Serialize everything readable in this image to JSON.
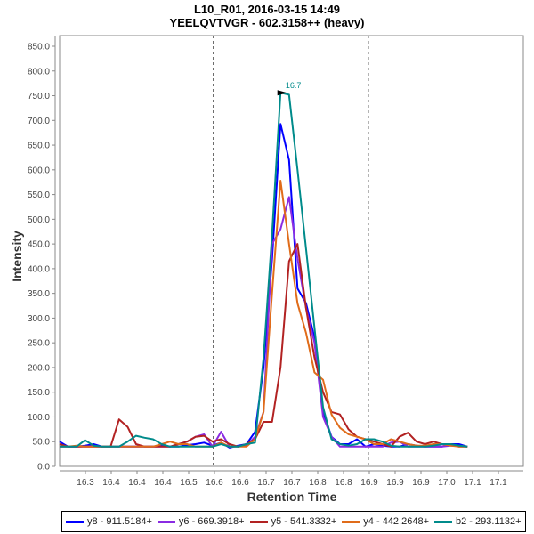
{
  "chart_data": {
    "type": "line",
    "title": "L10_R01, 2016-03-15 14:49",
    "subtitle": "YEELQVTVGR - 602.3158++ (heavy)",
    "xlabel": "Retention Time",
    "ylabel": "Intensity",
    "xlim": [
      16.25,
      17.148
    ],
    "ylim": [
      0,
      860
    ],
    "x_ticks": [
      16.3,
      16.35,
      16.4,
      16.45,
      16.5,
      16.55,
      16.6,
      16.65,
      16.7,
      16.75,
      16.8,
      16.85,
      16.9,
      16.95,
      17.0,
      17.05,
      17.1
    ],
    "x_tick_labels": [
      "16.3",
      "16.4",
      "16.4",
      "16.4",
      "16.5",
      "16.6",
      "16.6",
      "16.7",
      "16.7",
      "16.8",
      "16.8",
      "16.9",
      "16.9",
      "16.9",
      "17.0",
      "17.1",
      "17.1"
    ],
    "y_ticks": [
      0,
      50,
      100,
      150,
      200,
      250,
      300,
      350,
      400,
      450,
      500,
      550,
      600,
      650,
      700,
      750,
      800,
      850
    ],
    "y_tick_labels": [
      "0.0",
      "50.0",
      "100.0",
      "150.0",
      "200.0",
      "250.0",
      "300.0",
      "350.0",
      "400.0",
      "450.0",
      "500.0",
      "550.0",
      "600.0",
      "650.0",
      "700.0",
      "750.0",
      "800.0",
      "850.0"
    ],
    "grid": false,
    "integration_bounds": [
      16.548,
      16.848
    ],
    "peak_annotation": {
      "label": "16.7",
      "x": 16.696,
      "y": 756,
      "color": "#008b8b"
    },
    "x_start": 16.25,
    "x_step": 0.01646,
    "series": [
      {
        "name": "y8 - 911.5184+",
        "color": "#0000ff",
        "values": [
          50,
          40,
          40,
          42,
          45,
          40,
          40,
          40,
          40,
          40,
          40,
          40,
          42,
          40,
          40,
          43,
          45,
          48,
          42,
          48,
          38,
          42,
          45,
          70,
          200,
          420,
          693,
          620,
          360,
          330,
          260,
          110,
          60,
          45,
          45,
          55,
          40,
          45,
          42,
          40,
          40,
          45,
          42,
          40,
          40,
          40,
          45,
          45,
          40
        ]
      },
      {
        "name": "y6 - 669.3918+",
        "color": "#8a2be2",
        "values": [
          40,
          40,
          40,
          40,
          40,
          40,
          40,
          40,
          40,
          40,
          40,
          40,
          40,
          40,
          45,
          50,
          60,
          65,
          40,
          70,
          40,
          40,
          42,
          60,
          110,
          450,
          480,
          545,
          420,
          320,
          250,
          100,
          60,
          40,
          40,
          40,
          40,
          40,
          40,
          48,
          50,
          40,
          40,
          40,
          40,
          40,
          42,
          42,
          40
        ]
      },
      {
        "name": "y5 - 541.3332+",
        "color": "#b22222",
        "values": [
          45,
          40,
          40,
          40,
          40,
          40,
          40,
          95,
          80,
          45,
          40,
          40,
          40,
          40,
          45,
          50,
          60,
          62,
          50,
          55,
          45,
          40,
          45,
          55,
          90,
          90,
          200,
          415,
          450,
          320,
          220,
          150,
          110,
          105,
          75,
          60,
          55,
          50,
          45,
          40,
          60,
          68,
          50,
          45,
          50,
          45,
          45,
          40,
          40
        ]
      },
      {
        "name": "y4 - 442.2648+",
        "color": "#e06c1a",
        "values": [
          40,
          40,
          42,
          40,
          40,
          40,
          40,
          40,
          40,
          40,
          40,
          40,
          45,
          50,
          45,
          45,
          40,
          40,
          40,
          48,
          40,
          40,
          40,
          55,
          110,
          350,
          578,
          450,
          330,
          270,
          190,
          175,
          105,
          78,
          65,
          60,
          55,
          45,
          45,
          55,
          50,
          45,
          42,
          42,
          45,
          45,
          42,
          40,
          40
        ]
      },
      {
        "name": "b2 - 293.1132+",
        "color": "#008b8b",
        "values": [
          40,
          40,
          40,
          53,
          42,
          40,
          40,
          40,
          50,
          62,
          58,
          55,
          45,
          40,
          40,
          40,
          40,
          40,
          40,
          45,
          40,
          40,
          45,
          48,
          220,
          470,
          756,
          752,
          600,
          440,
          280,
          120,
          55,
          45,
          42,
          45,
          55,
          55,
          50,
          42,
          40,
          40,
          40,
          40,
          42,
          45,
          45,
          42,
          40
        ]
      }
    ],
    "legend_position": "bottom"
  }
}
